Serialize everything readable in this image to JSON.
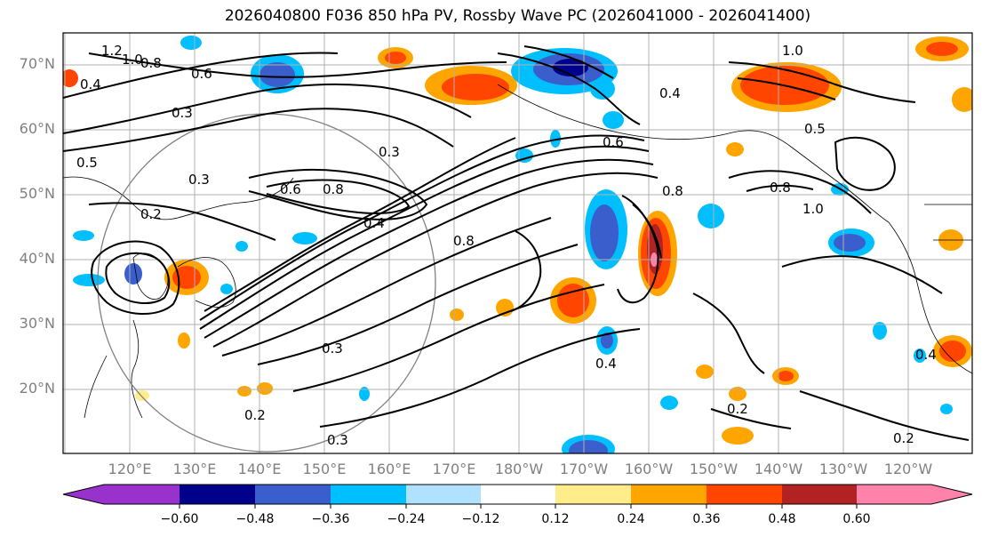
{
  "title": "2026040800 F036 850 hPa PV, Rossby Wave PC (2026041000 - 2026041400)",
  "map": {
    "lat_labels": [
      "70°N",
      "60°N",
      "50°N",
      "40°N",
      "30°N",
      "20°N"
    ],
    "lon_labels": [
      "120°E",
      "130°E",
      "140°E",
      "150°E",
      "160°E",
      "170°E",
      "180°W",
      "170°W",
      "160°W",
      "150°W",
      "140°W",
      "130°W",
      "120°W"
    ],
    "contour_labels": [
      "1.2",
      "1.0",
      "0.8",
      "0.6",
      "0.4",
      "0.3",
      "0.5",
      "0.2",
      "0.3",
      "0.6",
      "0.8",
      "0.4",
      "0.3",
      "0.8",
      "1.0",
      "0.6",
      "0.4",
      "0.8",
      "1.0",
      "0.8",
      "0.4",
      "0.3",
      "0.2",
      "0.2",
      "0.4",
      "0.2",
      "0.5",
      "0.3"
    ]
  },
  "colorbar": {
    "ticks": [
      "−0.60",
      "−0.48",
      "−0.36",
      "−0.24",
      "−0.12",
      "0.12",
      "0.24",
      "0.36",
      "0.48",
      "0.60"
    ],
    "colors": [
      "#9932cc",
      "#00008b",
      "#3a5fcd",
      "#00bfff",
      "#b0e2ff",
      "#ffffff",
      "#ffec8b",
      "#ffa500",
      "#ff4500",
      "#b22222",
      "#ff82ab"
    ]
  },
  "fill_colors": {
    "neg_strong": "#00008b",
    "neg_mid": "#3a5fcd",
    "neg_light": "#00bfff",
    "neg_faint": "#b0e2ff",
    "pos_faint": "#ffec8b",
    "pos_light": "#ffa500",
    "pos_mid": "#ff4500",
    "pos_strong": "#b22222",
    "pos_extreme": "#ff82ab"
  }
}
